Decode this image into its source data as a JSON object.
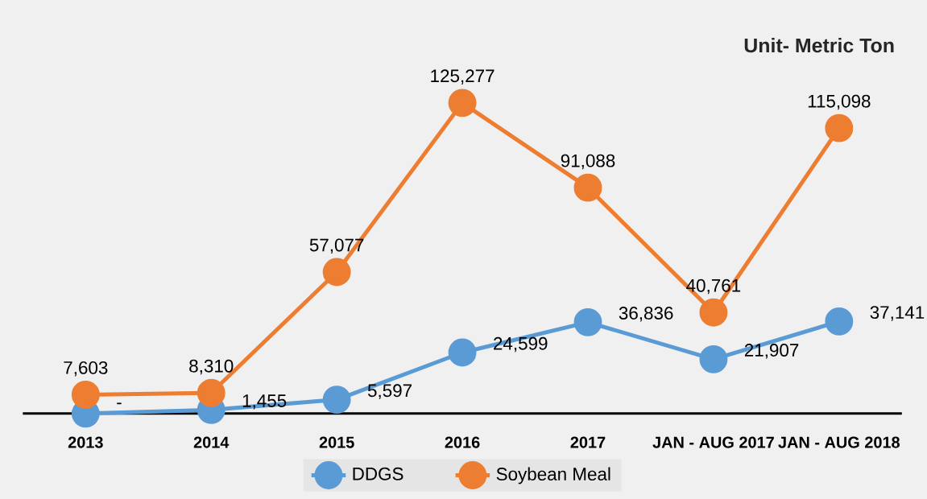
{
  "chart_data": {
    "type": "line",
    "categories": [
      "2013",
      "2014",
      "2015",
      "2016",
      "2017",
      "JAN - AUG 2017",
      "JAN - AUG 2018"
    ],
    "series": [
      {
        "name": "DDGS",
        "color": "#5b9bd5",
        "values": [
          0,
          1455,
          5597,
          24599,
          36836,
          21907,
          37141
        ],
        "value_labels": [
          "-",
          "1,455",
          "5,597",
          "24,599",
          "36,836",
          "21,907",
          "37,141"
        ]
      },
      {
        "name": "Soybean Meal",
        "color": "#ed7d31",
        "values": [
          7603,
          8310,
          57077,
          125277,
          91088,
          40761,
          115098
        ],
        "value_labels": [
          "7,603",
          "8,310",
          "57,077",
          "125,277",
          "91,088",
          "40,761",
          "115,098"
        ]
      }
    ],
    "tick_labels": "x",
    "legend": "bottom",
    "marker": "circle",
    "line_style": "solid",
    "annotations": [
      "Unit- Metric Ton"
    ]
  }
}
